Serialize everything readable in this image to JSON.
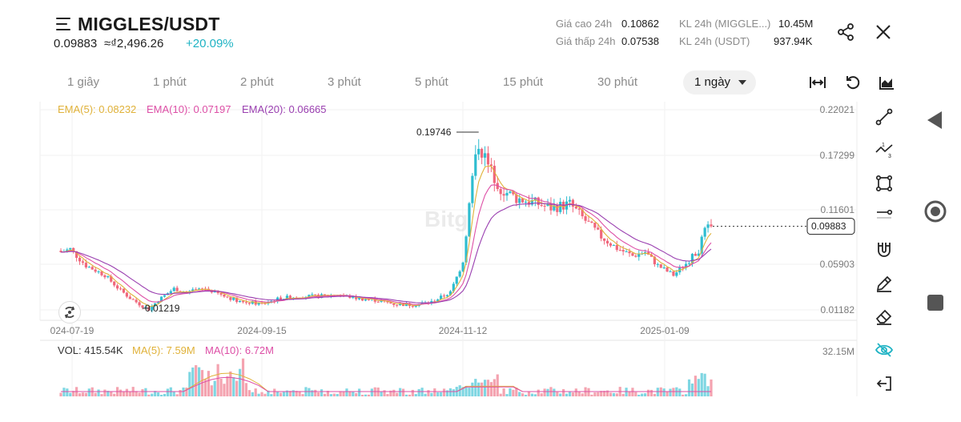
{
  "header": {
    "pair": "MIGGLES/USDT",
    "last_price": "0.09883",
    "fiat_price": "≈₫2,496.26",
    "change": "+20.09%"
  },
  "stats": {
    "high_label": "Giá cao 24h",
    "high_value": "0.10862",
    "low_label": "Giá thấp 24h",
    "low_value": "0.07538",
    "vol_base_label": "KL 24h (MIGGLE...)",
    "vol_base_value": "10.45M",
    "vol_quote_label": "KL 24h (USDT)",
    "vol_quote_value": "937.94K"
  },
  "intervals": [
    "1 giây",
    "1 phút",
    "2 phút",
    "3 phút",
    "5 phút",
    "15 phút",
    "30 phút"
  ],
  "active_interval": "1 ngày",
  "indicators": {
    "ema5": "EMA(5): 0.08232",
    "ema10": "EMA(10): 0.07197",
    "ema20": "EMA(20): 0.06665",
    "vol": "VOL: 415.54K",
    "vol_ma5": "MA(5): 7.59M",
    "vol_ma10": "MA(10): 6.72M"
  },
  "colors": {
    "up": "#2ebdd0",
    "down": "#f0677c",
    "ema5": "#e0b23a",
    "ema10": "#dd4fa6",
    "ema20": "#9a3fb0",
    "accent": "#1fb3c4"
  },
  "chart_data": {
    "type": "candlestick",
    "y_ticks": [
      "0.22021",
      "0.17299",
      "0.11601",
      "0.05903",
      "0.01182"
    ],
    "x_ticks": [
      "024-07-19",
      "2024-09-15",
      "2024-11-12",
      "2025-01-09"
    ],
    "max_label": "0.19746",
    "min_label": "0.01219",
    "current_price_label": "0.09883",
    "volume_axis_label": "32.15M",
    "series": [
      {
        "name": "EMA(5)",
        "last": 0.08232
      },
      {
        "name": "EMA(10)",
        "last": 0.07197
      },
      {
        "name": "EMA(20)",
        "last": 0.06665
      }
    ],
    "price_path": [
      [
        0,
        0.072
      ],
      [
        3,
        0.075
      ],
      [
        8,
        0.058
      ],
      [
        14,
        0.048
      ],
      [
        18,
        0.035
      ],
      [
        22,
        0.024
      ],
      [
        26,
        0.016
      ],
      [
        28,
        0.0125
      ],
      [
        31,
        0.022
      ],
      [
        36,
        0.034
      ],
      [
        40,
        0.03
      ],
      [
        46,
        0.034
      ],
      [
        52,
        0.026
      ],
      [
        58,
        0.02
      ],
      [
        64,
        0.018
      ],
      [
        70,
        0.024
      ],
      [
        76,
        0.026
      ],
      [
        82,
        0.026
      ],
      [
        88,
        0.028
      ],
      [
        94,
        0.024
      ],
      [
        100,
        0.022
      ],
      [
        106,
        0.018
      ],
      [
        112,
        0.017
      ],
      [
        118,
        0.02
      ],
      [
        124,
        0.03
      ],
      [
        128,
        0.062
      ],
      [
        131,
        0.15
      ],
      [
        133,
        0.186
      ],
      [
        136,
        0.162
      ],
      [
        140,
        0.138
      ],
      [
        145,
        0.128
      ],
      [
        150,
        0.124
      ],
      [
        156,
        0.118
      ],
      [
        162,
        0.122
      ],
      [
        166,
        0.108
      ],
      [
        172,
        0.088
      ],
      [
        177,
        0.076
      ],
      [
        182,
        0.068
      ],
      [
        186,
        0.072
      ],
      [
        190,
        0.058
      ],
      [
        195,
        0.048
      ],
      [
        199,
        0.06
      ],
      [
        203,
        0.074
      ],
      [
        205,
        0.094
      ],
      [
        207,
        0.09883
      ]
    ]
  }
}
